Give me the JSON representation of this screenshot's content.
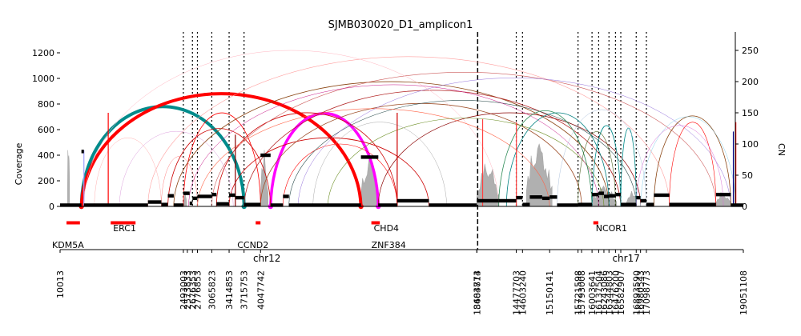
{
  "chart_data": {
    "type": "amplicon",
    "title": "SJMB030020_D1_amplicon1",
    "ylabel_left": "Coverage",
    "ylabel_right": "CN",
    "left_ticks": [
      0,
      200,
      400,
      600,
      800,
      1000,
      1200
    ],
    "right_ticks": [
      0,
      50,
      100,
      150,
      200,
      250
    ],
    "ylim_left": [
      0,
      1350
    ],
    "ylim_right": [
      0,
      262
    ],
    "chromosomes": [
      {
        "name": "chr12",
        "start": 10013,
        "end": 8404773
      },
      {
        "name": "chr17",
        "start": 13683814,
        "end": 19051108
      }
    ],
    "breakpoint_labels": [
      {
        "label": "10013",
        "chrom": "chr12",
        "pos": 10013
      },
      {
        "label": "2493003",
        "chrom": "chr12",
        "pos": 2493003
      },
      {
        "label": "2573833",
        "chrom": "chr12",
        "pos": 2573833
      },
      {
        "label": "2676353",
        "chrom": "chr12",
        "pos": 2676353
      },
      {
        "label": "2776853",
        "chrom": "chr12",
        "pos": 2776853
      },
      {
        "label": "3065823",
        "chrom": "chr12",
        "pos": 3065823
      },
      {
        "label": "3414853",
        "chrom": "chr12",
        "pos": 3414853
      },
      {
        "label": "3715753",
        "chrom": "chr12",
        "pos": 3715753
      },
      {
        "label": "4047742",
        "chrom": "chr12",
        "pos": 4047742
      },
      {
        "label": "8404773",
        "chrom": "chr12",
        "pos": 8404773
      },
      {
        "label": "13683814",
        "chrom": "chr17",
        "pos": 13683814
      },
      {
        "label": "14477703",
        "chrom": "chr17",
        "pos": 14477703
      },
      {
        "label": "14603240",
        "chrom": "chr17",
        "pos": 14603240
      },
      {
        "label": "15150141",
        "chrom": "chr17",
        "pos": 15150141
      },
      {
        "label": "15721598",
        "chrom": "chr17",
        "pos": 15721598
      },
      {
        "label": "15793008",
        "chrom": "chr17",
        "pos": 15793008
      },
      {
        "label": "16003641",
        "chrom": "chr17",
        "pos": 16003641
      },
      {
        "label": "16137504",
        "chrom": "chr17",
        "pos": 16137504
      },
      {
        "label": "16243086",
        "chrom": "chr17",
        "pos": 16243086
      },
      {
        "label": "16344803",
        "chrom": "chr17",
        "pos": 16344803
      },
      {
        "label": "16476200",
        "chrom": "chr17",
        "pos": 16476200
      },
      {
        "label": "16582907",
        "chrom": "chr17",
        "pos": 16582907
      },
      {
        "label": "16893590",
        "chrom": "chr17",
        "pos": 16893590
      },
      {
        "label": "16980543",
        "chrom": "chr17",
        "pos": 16980543
      },
      {
        "label": "17098773",
        "chrom": "chr17",
        "pos": 17098773
      },
      {
        "label": "19051108",
        "chrom": "chr17",
        "pos": 19051108
      }
    ],
    "chromosome_boundary": {
      "chrom": "chr12",
      "pos": 8404773
    },
    "breakpoint_markers": [
      {
        "chrom": "chr12",
        "pos": 2493003
      },
      {
        "chrom": "chr12",
        "pos": 2676353
      },
      {
        "chrom": "chr12",
        "pos": 2776853
      },
      {
        "chrom": "chr12",
        "pos": 3065823
      },
      {
        "chrom": "chr12",
        "pos": 3414853
      },
      {
        "chrom": "chr12",
        "pos": 3715753
      },
      {
        "chrom": "chr17",
        "pos": 14477703
      },
      {
        "chrom": "chr17",
        "pos": 14603240
      },
      {
        "chrom": "chr17",
        "pos": 15721598
      },
      {
        "chrom": "chr17",
        "pos": 16003641
      },
      {
        "chrom": "chr17",
        "pos": 16137504
      },
      {
        "chrom": "chr17",
        "pos": 16344803
      },
      {
        "chrom": "chr17",
        "pos": 16476200
      },
      {
        "chrom": "chr17",
        "pos": 16582907
      },
      {
        "chrom": "chr17",
        "pos": 16893590
      },
      {
        "chrom": "chr17",
        "pos": 17098773
      }
    ],
    "genes": [
      {
        "name": "KDM5A",
        "chrom": "chr12",
        "start": 140000,
        "end": 410000,
        "row": 2
      },
      {
        "name": "ERC1",
        "chrom": "chr12",
        "start": 1030000,
        "end": 1530000,
        "row": 1
      },
      {
        "name": "CCND2",
        "chrom": "chr12",
        "start": 3950000,
        "end": 4040000,
        "row": 2
      },
      {
        "name": "CHD4",
        "chrom": "chr12",
        "start": 6280000,
        "end": 6450000,
        "row": 1
      },
      {
        "name": "ZNF384",
        "chrom": "chr12",
        "start": 6280000,
        "end": 6450000,
        "row": 2
      },
      {
        "name": "NCOR1",
        "chrom": "chr17",
        "start": 16030000,
        "end": 16130000,
        "row": 1
      }
    ],
    "segments": [
      {
        "chrom": "chr12",
        "start": 10013,
        "end": 440000,
        "cn": 2
      },
      {
        "chrom": "chr12",
        "start": 440000,
        "end": 490000,
        "cn": 88
      },
      {
        "chrom": "chr12",
        "start": 490000,
        "end": 1780000,
        "cn": 2
      },
      {
        "chrom": "chr12",
        "start": 1780000,
        "end": 2050000,
        "cn": 7
      },
      {
        "chrom": "chr12",
        "start": 2050000,
        "end": 2180000,
        "cn": 3
      },
      {
        "chrom": "chr12",
        "start": 2180000,
        "end": 2300000,
        "cn": 17
      },
      {
        "chrom": "chr12",
        "start": 2300000,
        "end": 2493003,
        "cn": 2
      },
      {
        "chrom": "chr12",
        "start": 2493003,
        "end": 2620000,
        "cn": 21
      },
      {
        "chrom": "chr12",
        "start": 2620000,
        "end": 2676353,
        "cn": 5
      },
      {
        "chrom": "chr12",
        "start": 2676353,
        "end": 2776853,
        "cn": 13
      },
      {
        "chrom": "chr12",
        "start": 2776853,
        "end": 3065823,
        "cn": 16
      },
      {
        "chrom": "chr12",
        "start": 3065823,
        "end": 3160000,
        "cn": 19
      },
      {
        "chrom": "chr12",
        "start": 3160000,
        "end": 3414853,
        "cn": 4
      },
      {
        "chrom": "chr12",
        "start": 3414853,
        "end": 3540000,
        "cn": 18
      },
      {
        "chrom": "chr12",
        "start": 3540000,
        "end": 3715753,
        "cn": 14
      },
      {
        "chrom": "chr12",
        "start": 3715753,
        "end": 4047742,
        "cn": 3
      },
      {
        "chrom": "chr12",
        "start": 4047742,
        "end": 4250000,
        "cn": 82
      },
      {
        "chrom": "chr12",
        "start": 4250000,
        "end": 4500000,
        "cn": 2
      },
      {
        "chrom": "chr12",
        "start": 4500000,
        "end": 4620000,
        "cn": 16
      },
      {
        "chrom": "chr12",
        "start": 4620000,
        "end": 6070000,
        "cn": 2
      },
      {
        "chrom": "chr12",
        "start": 6070000,
        "end": 6420000,
        "cn": 79
      },
      {
        "chrom": "chr12",
        "start": 6420000,
        "end": 6800000,
        "cn": 2
      },
      {
        "chrom": "chr12",
        "start": 6800000,
        "end": 7440000,
        "cn": 9
      },
      {
        "chrom": "chr12",
        "start": 7440000,
        "end": 8404773,
        "cn": 2
      },
      {
        "chrom": "chr17",
        "start": 13683814,
        "end": 14120000,
        "cn": 9
      },
      {
        "chrom": "chr17",
        "start": 14120000,
        "end": 14477703,
        "cn": 9
      },
      {
        "chrom": "chr17",
        "start": 14477703,
        "end": 14603240,
        "cn": 14
      },
      {
        "chrom": "chr17",
        "start": 14603240,
        "end": 14750000,
        "cn": 3
      },
      {
        "chrom": "chr17",
        "start": 14750000,
        "end": 15000000,
        "cn": 15
      },
      {
        "chrom": "chr17",
        "start": 15000000,
        "end": 15150141,
        "cn": 13
      },
      {
        "chrom": "chr17",
        "start": 15150141,
        "end": 15300000,
        "cn": 15
      },
      {
        "chrom": "chr17",
        "start": 15300000,
        "end": 15721598,
        "cn": 2
      },
      {
        "chrom": "chr17",
        "start": 15721598,
        "end": 16003641,
        "cn": 3
      },
      {
        "chrom": "chr17",
        "start": 16003641,
        "end": 16137504,
        "cn": 19
      },
      {
        "chrom": "chr17",
        "start": 16137504,
        "end": 16243086,
        "cn": 21
      },
      {
        "chrom": "chr17",
        "start": 16243086,
        "end": 16344803,
        "cn": 16
      },
      {
        "chrom": "chr17",
        "start": 16344803,
        "end": 16476200,
        "cn": 17
      },
      {
        "chrom": "chr17",
        "start": 16476200,
        "end": 16582907,
        "cn": 19
      },
      {
        "chrom": "chr17",
        "start": 16582907,
        "end": 16893590,
        "cn": 3
      },
      {
        "chrom": "chr17",
        "start": 16893590,
        "end": 16980543,
        "cn": 14
      },
      {
        "chrom": "chr17",
        "start": 16980543,
        "end": 17098773,
        "cn": 9
      },
      {
        "chrom": "chr17",
        "start": 17098773,
        "end": 17250000,
        "cn": 3
      },
      {
        "chrom": "chr17",
        "start": 17250000,
        "end": 17560000,
        "cn": 18
      },
      {
        "chrom": "chr17",
        "start": 17560000,
        "end": 18500000,
        "cn": 3
      },
      {
        "chrom": "chr17",
        "start": 18500000,
        "end": 18800000,
        "cn": 19
      },
      {
        "chrom": "chr17",
        "start": 18800000,
        "end": 19051108,
        "cn": 2
      }
    ],
    "coverage": [
      {
        "chrom": "chr12",
        "start": 160000,
        "end": 200000,
        "peak": 680
      },
      {
        "chrom": "chr12",
        "start": 2493003,
        "end": 2560000,
        "peak": 120
      },
      {
        "chrom": "chr12",
        "start": 4047742,
        "end": 4200000,
        "peak": 470
      },
      {
        "chrom": "chr12",
        "start": 6070000,
        "end": 6420000,
        "peak": 420
      },
      {
        "chrom": "chr17",
        "start": 13683814,
        "end": 14130000,
        "peak": 380
      },
      {
        "chrom": "chr17",
        "start": 14680000,
        "end": 15200000,
        "peak": 560
      },
      {
        "chrom": "chr17",
        "start": 16003641,
        "end": 16500000,
        "peak": 180
      },
      {
        "chrom": "chr17",
        "start": 16700000,
        "end": 16900000,
        "peak": 140
      },
      {
        "chrom": "chr17",
        "start": 18500000,
        "end": 18800000,
        "peak": 120
      }
    ],
    "breakpoints": [
      {
        "c1": "chr12",
        "p1": 440000,
        "c2": "chr12",
        "p2": 3715753,
        "color": "#008b8b",
        "cn": 160,
        "width": 4
      },
      {
        "c1": "chr12",
        "p1": 440000,
        "c2": "chr12",
        "p2": 6070000,
        "color": "#ff0000",
        "cn": 185,
        "width": 4
      },
      {
        "c1": "chr12",
        "p1": 4250000,
        "c2": "chr12",
        "p2": 6420000,
        "color": "#ff00ff",
        "cn": 155,
        "width": 3.5
      },
      {
        "c1": "chr12",
        "p1": 2493003,
        "c2": "chr12",
        "p2": 4047742,
        "color": "#ff0000",
        "cn": 150,
        "width": 0.8
      },
      {
        "c1": "chr12",
        "p1": 2180000,
        "c2": "chr12",
        "p2": 4250000,
        "color": "#cc0000",
        "cn": 130,
        "width": 0.8
      },
      {
        "c1": "chr12",
        "p1": 3160000,
        "c2": "chr12",
        "p2": 6800000,
        "color": "#cc0000",
        "cn": 150,
        "width": 0.8
      },
      {
        "c1": "chr12",
        "p1": 3414853,
        "c2": "chr12",
        "p2": 7440000,
        "color": "#cc0000",
        "cn": 110,
        "width": 0.8
      },
      {
        "c1": "chr12",
        "p1": 4500000,
        "c2": "chr12",
        "p2": 6800000,
        "color": "#ff0000",
        "cn": 100,
        "width": 0.6
      },
      {
        "c1": "chr12",
        "p1": 2300000,
        "c2": "chr17",
        "p2": 16343000,
        "color": "#8b4513",
        "cn": 200,
        "width": 0.8
      },
      {
        "c1": "chr12",
        "p1": 3715753,
        "c2": "chr17",
        "p2": 16582907,
        "color": "#b22222",
        "cn": 190,
        "width": 0.8
      },
      {
        "c1": "chr12",
        "p1": 4047742,
        "c2": "chr17",
        "p2": 15793008,
        "color": "#a0522d",
        "cn": 165,
        "width": 0.8
      },
      {
        "c1": "chr12",
        "p1": 3065823,
        "c2": "chr17",
        "p2": 18500000,
        "color": "#cd5c5c",
        "cn": 215,
        "width": 0.6
      },
      {
        "c1": "chr12",
        "p1": 1780000,
        "c2": "chr17",
        "p2": 17560000,
        "color": "#ffa0a0",
        "cn": 240,
        "width": 0.6
      },
      {
        "c1": "chr12",
        "p1": 490000,
        "c2": "chr17",
        "p2": 14120000,
        "color": "#ffb6c1",
        "cn": 250,
        "width": 0.5
      },
      {
        "c1": "chr12",
        "p1": 4620000,
        "c2": "chr17",
        "p2": 16893590,
        "color": "#2f4f4f",
        "cn": 170,
        "width": 0.6
      },
      {
        "c1": "chr12",
        "p1": 6420000,
        "c2": "chr17",
        "p2": 16980543,
        "color": "#8b0000",
        "cn": 150,
        "width": 0.7
      },
      {
        "c1": "chr12",
        "p1": 2776853,
        "c2": "chr17",
        "p2": 15150141,
        "color": "#ff6347",
        "cn": 160,
        "width": 0.6
      },
      {
        "c1": "chr12",
        "p1": 5400000,
        "c2": "chr17",
        "p2": 16244000,
        "color": "#6b8e23",
        "cn": 145,
        "width": 0.6
      },
      {
        "c1": "chr12",
        "p1": 4800000,
        "c2": "chr17",
        "p2": 18800000,
        "color": "#9370db",
        "cn": 210,
        "width": 0.5
      },
      {
        "c1": "chr12",
        "p1": 2600000,
        "c2": "chr17",
        "p2": 16137504,
        "color": "#c71585",
        "cn": 195,
        "width": 0.5
      },
      {
        "c1": "chr12",
        "p1": 1200000,
        "c2": "chr12",
        "p2": 3500000,
        "color": "#dda0dd",
        "cn": 125,
        "width": 0.5
      },
      {
        "c1": "chr12",
        "p1": 700000,
        "c2": "chr12",
        "p2": 2050000,
        "color": "#ffb0b0",
        "cn": 110,
        "width": 0.5
      },
      {
        "c1": "chr12",
        "p1": 5100000,
        "c2": "chr12",
        "p2": 7800000,
        "color": "#a9a9a9",
        "cn": 140,
        "width": 0.5
      },
      {
        "c1": "chr12",
        "p1": 2050000,
        "c2": "chr12",
        "p2": 2776853,
        "color": "#ff7f7f",
        "cn": 80,
        "width": 0.5
      },
      {
        "c1": "chr17",
        "p1": 14120000,
        "c2": "chr17",
        "p2": 16003641,
        "color": "#2e8b57",
        "cn": 160,
        "width": 0.8
      },
      {
        "c1": "chr17",
        "p1": 14280000,
        "c2": "chr17",
        "p2": 16344803,
        "color": "#008080",
        "cn": 150,
        "width": 0.8
      },
      {
        "c1": "chr17",
        "p1": 16003641,
        "c2": "chr17",
        "p2": 16582907,
        "color": "#008b8b",
        "cn": 140,
        "width": 0.8
      },
      {
        "c1": "chr17",
        "p1": 16582907,
        "c2": "chr17",
        "p2": 16893590,
        "color": "#008b8b",
        "cn": 125,
        "width": 0.8
      },
      {
        "c1": "chr17",
        "p1": 17250000,
        "c2": "chr17",
        "p2": 18800000,
        "color": "#8b4513",
        "cn": 145,
        "width": 0.8
      },
      {
        "c1": "chr17",
        "p1": 17560000,
        "c2": "chr17",
        "p2": 18500000,
        "color": "#ff0000",
        "cn": 135,
        "width": 0.6
      },
      {
        "c1": "chr17",
        "p1": 15300000,
        "c2": "chr17",
        "p2": 17098773,
        "color": "#b0c4de",
        "cn": 155,
        "width": 0.5
      },
      {
        "c1": "chr17",
        "p1": 16980543,
        "c2": "chr17",
        "p2": 18900000,
        "color": "#87ceeb",
        "cn": 150,
        "width": 0.5
      },
      {
        "c1": "chr17",
        "p1": 15721598,
        "c2": "chr17",
        "p2": 16476200,
        "color": "#556b2f",
        "cn": 120,
        "width": 0.6
      },
      {
        "c1": "chr17",
        "p1": 16893590,
        "c2": "chr17",
        "p2": 18650000,
        "color": "#da70d6",
        "cn": 130,
        "width": 0.5
      }
    ],
    "foldbacks": [
      {
        "chrom": "chr12",
        "pos": 490000,
        "color": "#a0a0ff",
        "cn": 90
      },
      {
        "chrom": "chr12",
        "pos": 980000,
        "color": "#ff0000",
        "cn": 150
      },
      {
        "chrom": "chr12",
        "pos": 3540000,
        "color": "#8b0000",
        "cn": 115
      },
      {
        "chrom": "chr12",
        "pos": 6800000,
        "color": "#cc0000",
        "cn": 150
      },
      {
        "chrom": "chr17",
        "pos": 13800000,
        "color": "#ff4040",
        "cn": 140
      },
      {
        "chrom": "chr17",
        "pos": 14480000,
        "color": "#ff4040",
        "cn": 135
      },
      {
        "chrom": "chr17",
        "pos": 18900000,
        "color": "#ff0000",
        "cn": 135
      },
      {
        "chrom": "chr17",
        "pos": 18850000,
        "color": "#000080",
        "cn": 120
      }
    ]
  }
}
